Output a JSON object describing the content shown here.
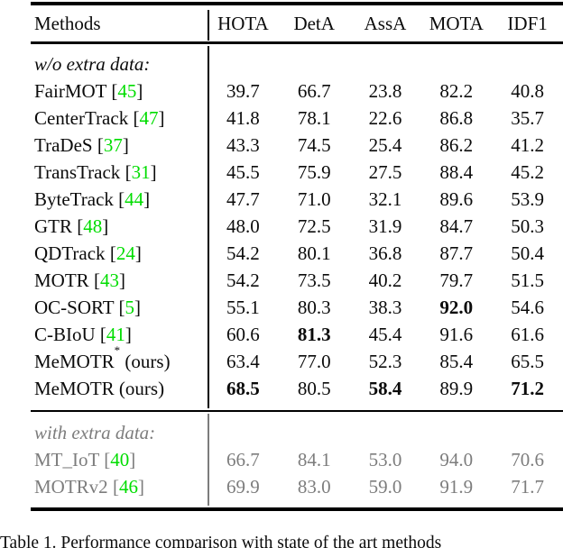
{
  "colors": {
    "citation_green": "#00dd00",
    "muted_gray": "#7d7d7d",
    "text_black": "#0b0b0b"
  },
  "table": {
    "columns": [
      "Methods",
      "HOTA",
      "DetA",
      "AssA",
      "MOTA",
      "IDF1"
    ],
    "sections": [
      {
        "label": "w/o extra data:",
        "muted": false,
        "rows": [
          {
            "name": "FairMOT",
            "cite": "45",
            "values": [
              "39.7",
              "66.7",
              "23.8",
              "82.2",
              "40.8"
            ],
            "bold": [
              0,
              0,
              0,
              0,
              0
            ]
          },
          {
            "name": "CenterTrack",
            "cite": "47",
            "values": [
              "41.8",
              "78.1",
              "22.6",
              "86.8",
              "35.7"
            ],
            "bold": [
              0,
              0,
              0,
              0,
              0
            ]
          },
          {
            "name": "TraDeS",
            "cite": "37",
            "values": [
              "43.3",
              "74.5",
              "25.4",
              "86.2",
              "41.2"
            ],
            "bold": [
              0,
              0,
              0,
              0,
              0
            ]
          },
          {
            "name": "TransTrack",
            "cite": "31",
            "values": [
              "45.5",
              "75.9",
              "27.5",
              "88.4",
              "45.2"
            ],
            "bold": [
              0,
              0,
              0,
              0,
              0
            ]
          },
          {
            "name": "ByteTrack",
            "cite": "44",
            "values": [
              "47.7",
              "71.0",
              "32.1",
              "89.6",
              "53.9"
            ],
            "bold": [
              0,
              0,
              0,
              0,
              0
            ]
          },
          {
            "name": "GTR",
            "cite": "48",
            "values": [
              "48.0",
              "72.5",
              "31.9",
              "84.7",
              "50.3"
            ],
            "bold": [
              0,
              0,
              0,
              0,
              0
            ]
          },
          {
            "name": "QDTrack",
            "cite": "24",
            "values": [
              "54.2",
              "80.1",
              "36.8",
              "87.7",
              "50.4"
            ],
            "bold": [
              0,
              0,
              0,
              0,
              0
            ]
          },
          {
            "name": "MOTR",
            "cite": "43",
            "values": [
              "54.2",
              "73.5",
              "40.2",
              "79.7",
              "51.5"
            ],
            "bold": [
              0,
              0,
              0,
              0,
              0
            ]
          },
          {
            "name": "OC-SORT",
            "cite": "5",
            "values": [
              "55.1",
              "80.3",
              "38.3",
              "92.0",
              "54.6"
            ],
            "bold": [
              0,
              0,
              0,
              1,
              0
            ]
          },
          {
            "name": "C-BIoU",
            "cite": "41",
            "values": [
              "60.6",
              "81.3",
              "45.4",
              "91.6",
              "61.6"
            ],
            "bold": [
              0,
              1,
              0,
              0,
              0
            ]
          },
          {
            "name": "MeMOTR",
            "sup": "*",
            "note": "(ours)",
            "values": [
              "63.4",
              "77.0",
              "52.3",
              "85.4",
              "65.5"
            ],
            "bold": [
              0,
              0,
              0,
              0,
              0
            ]
          },
          {
            "name": "MeMOTR",
            "note": "(ours)",
            "values": [
              "68.5",
              "80.5",
              "58.4",
              "89.9",
              "71.2"
            ],
            "bold": [
              1,
              0,
              1,
              0,
              1
            ]
          }
        ]
      },
      {
        "label": "with extra data:",
        "muted": true,
        "rows": [
          {
            "name": "MT_IoT",
            "cite": "40",
            "values": [
              "66.7",
              "84.1",
              "53.0",
              "94.0",
              "70.6"
            ],
            "bold": [
              0,
              0,
              0,
              0,
              0
            ]
          },
          {
            "name": "MOTRv2",
            "cite": "46",
            "values": [
              "69.9",
              "83.0",
              "59.0",
              "91.9",
              "71.7"
            ],
            "bold": [
              0,
              0,
              0,
              0,
              0
            ]
          }
        ]
      }
    ],
    "caption": "Table 1. Performance comparison with state of the art methods"
  }
}
